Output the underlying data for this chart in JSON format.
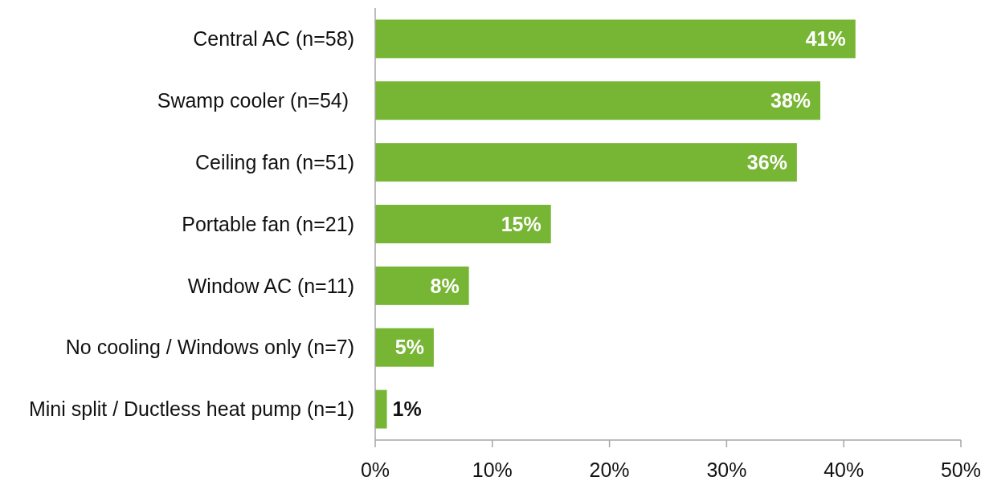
{
  "chart_data": {
    "type": "bar",
    "orientation": "horizontal",
    "categories": [
      "Central AC (n=58)",
      "Swamp cooler (n=54) ",
      "Ceiling fan (n=51)",
      "Portable fan (n=21)",
      "Window AC (n=11)",
      "No cooling / Windows only (n=7)",
      "Mini split / Ductless heat pump (n=1)"
    ],
    "values": [
      41,
      38,
      36,
      15,
      8,
      5,
      1
    ],
    "color": "#77b535",
    "value_labels": [
      "41%",
      "38%",
      "36%",
      "15%",
      "8%",
      "5%",
      "1%"
    ],
    "xlim": [
      0,
      50
    ],
    "xticks": [
      {
        "value": 0,
        "label": "0%"
      },
      {
        "value": 10,
        "label": "10%"
      },
      {
        "value": 20,
        "label": "20%"
      },
      {
        "value": 30,
        "label": "30%"
      },
      {
        "value": 40,
        "label": "40%"
      },
      {
        "value": 50,
        "label": "50%"
      }
    ]
  }
}
